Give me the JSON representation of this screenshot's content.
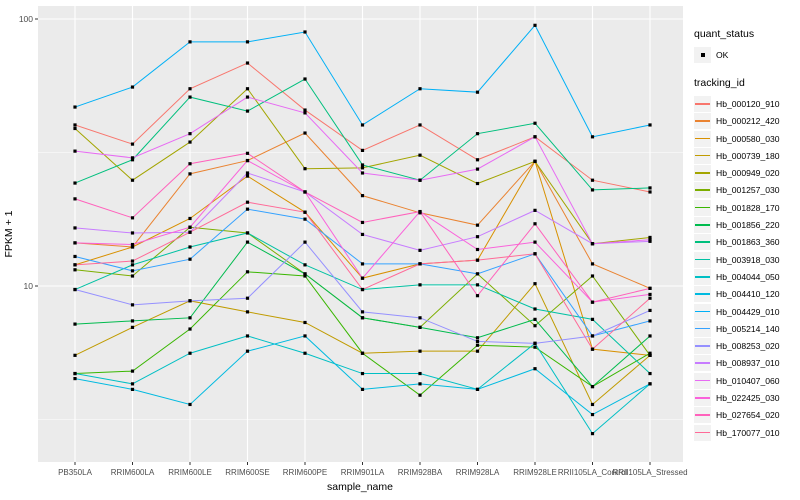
{
  "chart_data": {
    "type": "line",
    "title": "",
    "xlabel": "sample_name",
    "ylabel": "FPKM + 1",
    "y_scale": "log10",
    "y_ticks": [
      100,
      10
    ],
    "y_minor": [
      31.62,
      3.162
    ],
    "ylim": [
      2.2,
      112
    ],
    "grid": true,
    "panel_bg": "#EBEBEB",
    "grid_color": "#FFFFFF",
    "point_color": "#000000",
    "tick_label_color": "#4D4D4D",
    "axis_title_color": "#000000",
    "legend_position": "right",
    "categories": [
      "PB350LA",
      "RRIM600LA",
      "RRIM600LE",
      "RRIM600SE",
      "RRIM600PE",
      "RRIM901LA",
      "RRIM928BA",
      "RRIM928LA",
      "RRIM928LE",
      "RRII105LA_Control",
      "RRII105LA_Stressed"
    ],
    "series": [
      {
        "name": "Hb_000120_910",
        "color": "#F8766D",
        "values": [
          40.1,
          34.0,
          54.8,
          68.4,
          45.6,
          32.2,
          40.1,
          29.7,
          36.2,
          24.9,
          22.5
        ]
      },
      {
        "name": "Hb_000212_420",
        "color": "#EA8331",
        "values": [
          14.5,
          14.0,
          26.3,
          29.5,
          37.4,
          21.8,
          18.8,
          16.9,
          29.3,
          12.1,
          9.8
        ]
      },
      {
        "name": "Hb_000580_030",
        "color": "#D89000",
        "values": [
          12.0,
          14.0,
          17.9,
          25.8,
          18.9,
          10.7,
          12.1,
          12.5,
          29.3,
          5.8,
          5.5
        ]
      },
      {
        "name": "Hb_000739_180",
        "color": "#C09B00",
        "values": [
          5.5,
          7.0,
          8.8,
          8.0,
          7.3,
          5.6,
          5.7,
          5.7,
          10.2,
          3.6,
          5.5
        ]
      },
      {
        "name": "Hb_000949_020",
        "color": "#A3A500",
        "values": [
          38.9,
          24.9,
          34.6,
          54.8,
          27.5,
          27.7,
          30.9,
          24.2,
          29.3,
          14.4,
          15.2
        ]
      },
      {
        "name": "Hb_001257_030",
        "color": "#7CAE00",
        "values": [
          11.5,
          10.9,
          16.6,
          15.8,
          11.1,
          7.6,
          7.0,
          11.1,
          7.1,
          10.9,
          5.5
        ]
      },
      {
        "name": "Hb_001828_170",
        "color": "#39B600",
        "values": [
          4.7,
          4.8,
          6.9,
          11.3,
          10.9,
          5.6,
          3.9,
          6.0,
          5.9,
          4.2,
          5.6
        ]
      },
      {
        "name": "Hb_001856_220",
        "color": "#00BB4E",
        "values": [
          7.2,
          7.4,
          7.6,
          14.6,
          11.1,
          7.6,
          7.0,
          6.4,
          7.5,
          4.2,
          6.5
        ]
      },
      {
        "name": "Hb_001863_360",
        "color": "#00BF7D",
        "values": [
          24.3,
          29.7,
          51.0,
          45.2,
          59.6,
          28.4,
          24.9,
          37.2,
          40.7,
          22.9,
          23.3
        ]
      },
      {
        "name": "Hb_003918_030",
        "color": "#00C1A3",
        "values": [
          9.7,
          12.0,
          14.0,
          15.8,
          12.0,
          9.7,
          10.1,
          10.1,
          8.2,
          7.5,
          4.7
        ]
      },
      {
        "name": "Hb_004044_050",
        "color": "#00BFC4",
        "values": [
          4.7,
          4.3,
          5.6,
          6.5,
          5.6,
          4.7,
          4.7,
          4.1,
          6.1,
          2.8,
          4.3
        ]
      },
      {
        "name": "Hb_004410_120",
        "color": "#00BAE0",
        "values": [
          4.5,
          4.1,
          3.6,
          5.7,
          6.5,
          4.1,
          4.3,
          4.1,
          4.9,
          3.3,
          4.3
        ]
      },
      {
        "name": "Hb_004429_010",
        "color": "#00B0F6",
        "values": [
          46.8,
          55.6,
          82.1,
          82.1,
          89.4,
          40.1,
          54.8,
          53.2,
          94.7,
          36.2,
          40.1
        ]
      },
      {
        "name": "Hb_005214_140",
        "color": "#35A2FF",
        "values": [
          12.9,
          11.4,
          12.6,
          19.4,
          17.8,
          12.1,
          12.1,
          11.1,
          13.2,
          6.5,
          7.4
        ]
      },
      {
        "name": "Hb_008253_020",
        "color": "#9590FF",
        "values": [
          9.7,
          8.5,
          8.8,
          9.0,
          14.6,
          8.0,
          7.6,
          6.2,
          6.1,
          6.5,
          8.1
        ]
      },
      {
        "name": "Hb_008937_010",
        "color": "#C77CFF",
        "values": [
          16.5,
          15.8,
          15.9,
          26.5,
          22.5,
          15.6,
          13.6,
          15.3,
          19.2,
          14.4,
          14.7
        ]
      },
      {
        "name": "Hb_010407_060",
        "color": "#E76BF3",
        "values": [
          32.0,
          30.2,
          37.2,
          51.0,
          44.5,
          26.5,
          24.9,
          27.4,
          36.2,
          14.4,
          14.9
        ]
      },
      {
        "name": "Hb_022425_030",
        "color": "#FA62DB",
        "values": [
          14.5,
          14.3,
          16.6,
          29.5,
          22.5,
          10.7,
          19.0,
          13.7,
          14.6,
          8.7,
          9.3
        ]
      },
      {
        "name": "Hb_027654_020",
        "color": "#FF62BC",
        "values": [
          21.2,
          18.0,
          28.7,
          31.4,
          22.5,
          17.3,
          19.0,
          9.2,
          17.1,
          8.7,
          9.8
        ]
      },
      {
        "name": "Hb_170077_010",
        "color": "#FF6A98",
        "values": [
          12.0,
          12.4,
          15.9,
          20.6,
          18.9,
          9.7,
          12.1,
          12.5,
          13.2,
          5.8,
          9.0
        ]
      }
    ],
    "point_legend": {
      "title": "quant_status",
      "items": [
        {
          "label": "OK",
          "shape": "point"
        }
      ]
    },
    "line_legend": {
      "title": "tracking_id"
    }
  }
}
